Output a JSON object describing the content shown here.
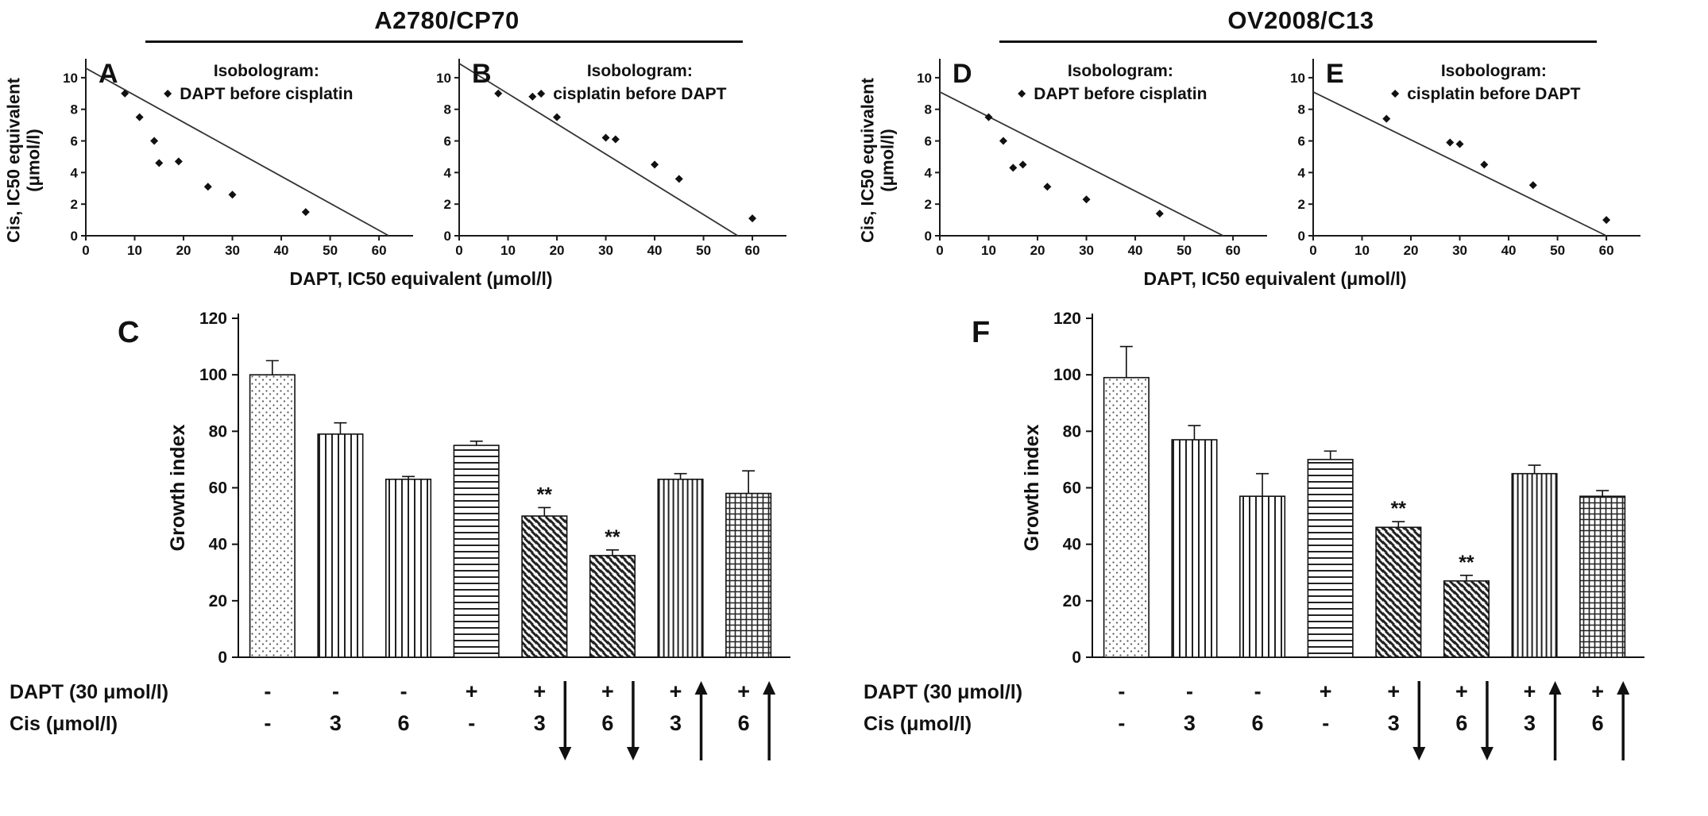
{
  "groups": [
    {
      "title": "A2780/CP70"
    },
    {
      "title": "OV2008/C13"
    }
  ],
  "labels": {
    "iso_ylabel_line1": "Cis, IC50 equivalent",
    "iso_ylabel_line2": "(μmol/l)",
    "iso_xlabel": "DAPT, IC50 equivalent (μmol/l)"
  },
  "chart_data": [
    {
      "id": "A",
      "type": "scatter",
      "group": "A2780/CP70",
      "legend_title": "Isobologram:",
      "series_label": "DAPT before cisplatin",
      "xlabel": "DAPT, IC50 equivalent (μmol/l)",
      "ylabel": "Cis, IC50 equivalent (μmol/l)",
      "xlim": [
        0,
        66
      ],
      "ylim": [
        0,
        11.2
      ],
      "xticks": [
        0,
        10,
        20,
        30,
        40,
        50,
        60
      ],
      "yticks": [
        0,
        2,
        4,
        6,
        8,
        10
      ],
      "additivity_line": {
        "start": [
          0,
          10.6
        ],
        "end": [
          62,
          0
        ]
      },
      "points": [
        [
          8,
          9
        ],
        [
          11,
          7.5
        ],
        [
          14,
          6
        ],
        [
          15,
          4.6
        ],
        [
          19,
          4.7
        ],
        [
          25,
          3.1
        ],
        [
          30,
          2.6
        ],
        [
          45,
          1.5
        ]
      ]
    },
    {
      "id": "B",
      "type": "scatter",
      "group": "A2780/CP70",
      "legend_title": "Isobologram:",
      "series_label": "cisplatin before DAPT",
      "xlabel": "DAPT, IC50 equivalent (μmol/l)",
      "ylabel": "Cis, IC50 equivalent (μmol/l)",
      "xlim": [
        0,
        66
      ],
      "ylim": [
        0,
        11.2
      ],
      "xticks": [
        0,
        10,
        20,
        30,
        40,
        50,
        60
      ],
      "yticks": [
        0,
        2,
        4,
        6,
        8,
        10
      ],
      "additivity_line": {
        "start": [
          0,
          10.9
        ],
        "end": [
          57,
          0
        ]
      },
      "points": [
        [
          8,
          9
        ],
        [
          15,
          8.8
        ],
        [
          20,
          7.5
        ],
        [
          30,
          6.2
        ],
        [
          32,
          6.1
        ],
        [
          40,
          4.5
        ],
        [
          45,
          3.6
        ],
        [
          60,
          1.1
        ]
      ]
    },
    {
      "id": "C",
      "type": "bar",
      "group": "A2780/CP70",
      "ylabel": "Growth index",
      "ylim": [
        0,
        120
      ],
      "yticks": [
        0,
        20,
        40,
        60,
        80,
        100,
        120
      ],
      "values": [
        100,
        79,
        63,
        75,
        50,
        36,
        63,
        58
      ],
      "errors": [
        5,
        4,
        1,
        1.5,
        3,
        2,
        2,
        8
      ],
      "significance": [
        "",
        "",
        "",
        "",
        "**",
        "**",
        "",
        ""
      ],
      "bar_patterns": [
        "dots",
        "vlines",
        "vlines",
        "hlines",
        "diag",
        "diag",
        "vlines-dense",
        "grid"
      ],
      "x_rows": [
        {
          "label": "DAPT (30 μmol/l)",
          "values": [
            "-",
            "-",
            "-",
            "+",
            "+",
            "+",
            "+",
            "+"
          ]
        },
        {
          "label": "Cis (μmol/l)",
          "values": [
            "-",
            "3",
            "6",
            "-",
            "3",
            "6",
            "3",
            "6"
          ]
        }
      ],
      "arrows": [
        "",
        "",
        "",
        "",
        "down",
        "down",
        "up",
        "up"
      ]
    },
    {
      "id": "D",
      "type": "scatter",
      "group": "OV2008/C13",
      "legend_title": "Isobologram:",
      "series_label": "DAPT before cisplatin",
      "xlabel": "DAPT, IC50 equivalent (μmol/l)",
      "ylabel": "Cis, IC50 equivalent (μmol/l)",
      "xlim": [
        0,
        66
      ],
      "ylim": [
        0,
        11.2
      ],
      "xticks": [
        0,
        10,
        20,
        30,
        40,
        50,
        60
      ],
      "yticks": [
        0,
        2,
        4,
        6,
        8,
        10
      ],
      "additivity_line": {
        "start": [
          0,
          9.1
        ],
        "end": [
          58,
          0
        ]
      },
      "points": [
        [
          10,
          7.5
        ],
        [
          13,
          6
        ],
        [
          15,
          4.3
        ],
        [
          17,
          4.5
        ],
        [
          22,
          3.1
        ],
        [
          30,
          2.3
        ],
        [
          45,
          1.4
        ]
      ]
    },
    {
      "id": "E",
      "type": "scatter",
      "group": "OV2008/C13",
      "legend_title": "Isobologram:",
      "series_label": "cisplatin before DAPT",
      "xlabel": "DAPT, IC50 equivalent (μmol/l)",
      "ylabel": "Cis, IC50 equivalent (μmol/l)",
      "xlim": [
        0,
        66
      ],
      "ylim": [
        0,
        11.2
      ],
      "xticks": [
        0,
        10,
        20,
        30,
        40,
        50,
        60
      ],
      "yticks": [
        0,
        2,
        4,
        6,
        8,
        10
      ],
      "additivity_line": {
        "start": [
          0,
          9.1
        ],
        "end": [
          60,
          0
        ]
      },
      "points": [
        [
          15,
          7.4
        ],
        [
          28,
          5.9
        ],
        [
          30,
          5.8
        ],
        [
          35,
          4.5
        ],
        [
          45,
          3.2
        ],
        [
          60,
          1.0
        ]
      ]
    },
    {
      "id": "F",
      "type": "bar",
      "group": "OV2008/C13",
      "ylabel": "Growth index",
      "ylim": [
        0,
        120
      ],
      "yticks": [
        0,
        20,
        40,
        60,
        80,
        100,
        120
      ],
      "values": [
        99,
        77,
        57,
        70,
        46,
        27,
        65,
        57
      ],
      "errors": [
        11,
        5,
        8,
        3,
        2,
        2,
        3,
        2
      ],
      "significance": [
        "",
        "",
        "",
        "",
        "**",
        "**",
        "",
        ""
      ],
      "bar_patterns": [
        "dots",
        "vlines",
        "vlines",
        "hlines",
        "diag",
        "diag",
        "vlines-dense",
        "grid"
      ],
      "x_rows": [
        {
          "label": "DAPT (30 μmol/l)",
          "values": [
            "-",
            "-",
            "-",
            "+",
            "+",
            "+",
            "+",
            "+"
          ]
        },
        {
          "label": "Cis (μmol/l)",
          "values": [
            "-",
            "3",
            "6",
            "-",
            "3",
            "6",
            "3",
            "6"
          ]
        }
      ],
      "arrows": [
        "",
        "",
        "",
        "",
        "down",
        "down",
        "up",
        "up"
      ]
    }
  ]
}
